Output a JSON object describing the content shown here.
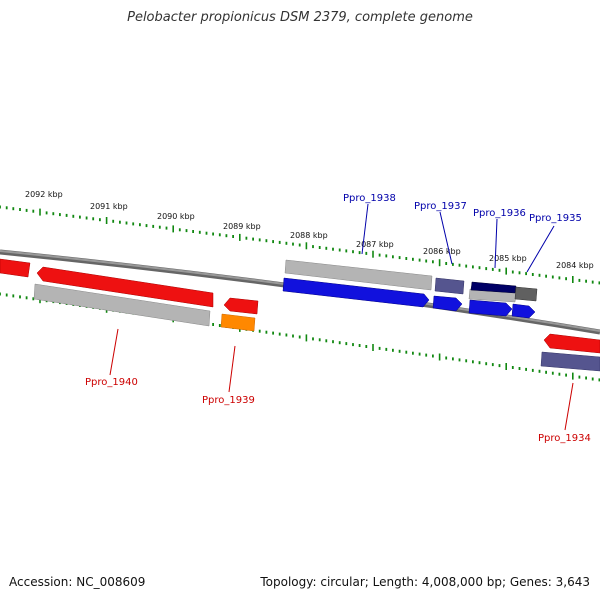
{
  "title": "Pelobacter propionicus DSM 2379, complete genome",
  "footer": {
    "accession": "Accession: NC_008609",
    "summary": "Topology: circular; Length: 4,008,000 bp; Genes: 3,643"
  },
  "colors": {
    "red_gene": "#ee1111",
    "blue_gene": "#1111dd",
    "grey_gene": "#b4b4b4",
    "orange_gene": "#ff8800",
    "purple_gene": "#55558f",
    "navy_gene": "#000066",
    "dark_grey_gene": "#606060",
    "tick_green": "#118811",
    "backbone": "#777777",
    "label_red": "#cc0000",
    "label_blue": "#0000aa"
  },
  "kbp_ticks": [
    "2092 kbp",
    "2091 kbp",
    "2090 kbp",
    "2089 kbp",
    "2088 kbp",
    "2087 kbp",
    "2086 kbp",
    "2085 kbp",
    "2084 kbp"
  ],
  "gene_labels": {
    "top": [
      "Ppro_1938",
      "Ppro_1937",
      "Ppro_1936",
      "Ppro_1935"
    ],
    "bottom": [
      "Ppro_1940",
      "Ppro_1939",
      "Ppro_1934"
    ]
  }
}
